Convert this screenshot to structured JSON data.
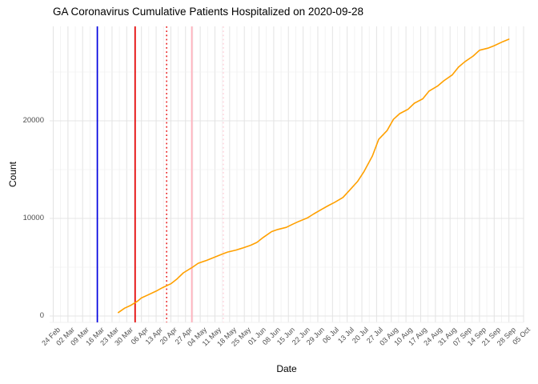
{
  "title": "GA Coronavirus Cumulative Patients Hospitalized on 2020-09-28",
  "chart_data": {
    "type": "line",
    "title": "GA Coronavirus Cumulative Patients Hospitalized on 2020-09-28",
    "xlabel": "Date",
    "ylabel": "Count",
    "background": "#FFFFFF",
    "grid": true,
    "gridline_major_color": "#E4E4E4",
    "gridline_minor_color": "#F0F0F0",
    "x_axis": {
      "start_date": "2020-02-24",
      "end_date": "2020-10-05",
      "tick_interval_days": 7,
      "minor_grid_interval_days": 3.5,
      "label_rotation_deg": 45,
      "tick_labels": [
        "24 Feb",
        "02 Mar",
        "09 Mar",
        "16 Mar",
        "23 Mar",
        "30 Mar",
        "06 Apr",
        "13 Apr",
        "20 Apr",
        "27 Apr",
        "04 May",
        "11 May",
        "18 May",
        "25 May",
        "01 Jun",
        "08 Jun",
        "15 Jun",
        "22 Jun",
        "29 Jun",
        "06 Jul",
        "13 Jul",
        "20 Jul",
        "27 Jul",
        "03 Aug",
        "10 Aug",
        "17 Aug",
        "24 Aug",
        "31 Aug",
        "07 Sep",
        "14 Sep",
        "21 Sep",
        "28 Sep",
        "05 Oct"
      ]
    },
    "y_axis": {
      "ticks": [
        0,
        10000,
        20000
      ],
      "tick_labels": [
        "0",
        "10000",
        "20000"
      ],
      "minor_ticks": [
        5000,
        15000,
        25000
      ],
      "min": 0,
      "max": 29700
    },
    "series": [
      {
        "name": "cumulative-patients-hospitalized",
        "color": "#FFA000",
        "stroke_width": 1.6,
        "points": [
          [
            "2020-03-26",
            350
          ],
          [
            "2020-03-29",
            800
          ],
          [
            "2020-04-01",
            1100
          ],
          [
            "2020-04-04",
            1500
          ],
          [
            "2020-04-06",
            1850
          ],
          [
            "2020-04-09",
            2150
          ],
          [
            "2020-04-13",
            2550
          ],
          [
            "2020-04-16",
            2900
          ],
          [
            "2020-04-20",
            3300
          ],
          [
            "2020-04-23",
            3800
          ],
          [
            "2020-04-26",
            4430
          ],
          [
            "2020-04-30",
            4950
          ],
          [
            "2020-05-03",
            5400
          ],
          [
            "2020-05-07",
            5700
          ],
          [
            "2020-05-10",
            5950
          ],
          [
            "2020-05-14",
            6300
          ],
          [
            "2020-05-17",
            6550
          ],
          [
            "2020-05-21",
            6750
          ],
          [
            "2020-05-24",
            6950
          ],
          [
            "2020-05-28",
            7250
          ],
          [
            "2020-05-31",
            7540
          ],
          [
            "2020-06-03",
            8050
          ],
          [
            "2020-06-07",
            8650
          ],
          [
            "2020-06-10",
            8870
          ],
          [
            "2020-06-14",
            9080
          ],
          [
            "2020-06-17",
            9400
          ],
          [
            "2020-06-20",
            9700
          ],
          [
            "2020-06-24",
            10050
          ],
          [
            "2020-06-27",
            10450
          ],
          [
            "2020-07-01",
            10950
          ],
          [
            "2020-07-04",
            11310
          ],
          [
            "2020-07-07",
            11650
          ],
          [
            "2020-07-11",
            12150
          ],
          [
            "2020-07-14",
            12850
          ],
          [
            "2020-07-18",
            13800
          ],
          [
            "2020-07-21",
            14800
          ],
          [
            "2020-07-25",
            16400
          ],
          [
            "2020-07-28",
            18100
          ],
          [
            "2020-08-01",
            19000
          ],
          [
            "2020-08-04",
            20150
          ],
          [
            "2020-08-07",
            20740
          ],
          [
            "2020-08-11",
            21180
          ],
          [
            "2020-08-14",
            21800
          ],
          [
            "2020-08-18",
            22250
          ],
          [
            "2020-08-21",
            23050
          ],
          [
            "2020-08-25",
            23560
          ],
          [
            "2020-08-28",
            24100
          ],
          [
            "2020-09-01",
            24700
          ],
          [
            "2020-09-04",
            25500
          ],
          [
            "2020-09-07",
            26050
          ],
          [
            "2020-09-11",
            26640
          ],
          [
            "2020-09-14",
            27230
          ],
          [
            "2020-09-18",
            27440
          ],
          [
            "2020-09-21",
            27700
          ],
          [
            "2020-09-25",
            28100
          ],
          [
            "2020-09-28",
            28360
          ]
        ]
      }
    ],
    "event_lines": [
      {
        "name": "event-line-blue-solid",
        "date": "2020-03-16",
        "color": "#0000E0",
        "style": "solid",
        "width": 1.7
      },
      {
        "name": "event-line-red-solid",
        "date": "2020-04-03",
        "color": "#E60000",
        "style": "solid",
        "width": 1.7
      },
      {
        "name": "event-line-red-dotted",
        "date": "2020-04-18",
        "color": "#E60000",
        "style": "dotted",
        "width": 1.4
      },
      {
        "name": "event-line-pink-solid",
        "date": "2020-04-30",
        "color": "#FFB3BE",
        "style": "solid",
        "width": 1.9
      },
      {
        "name": "event-line-pink-dotted",
        "date": "2020-05-15",
        "color": "#FFCFD8",
        "style": "dotted",
        "width": 1.4
      }
    ]
  }
}
